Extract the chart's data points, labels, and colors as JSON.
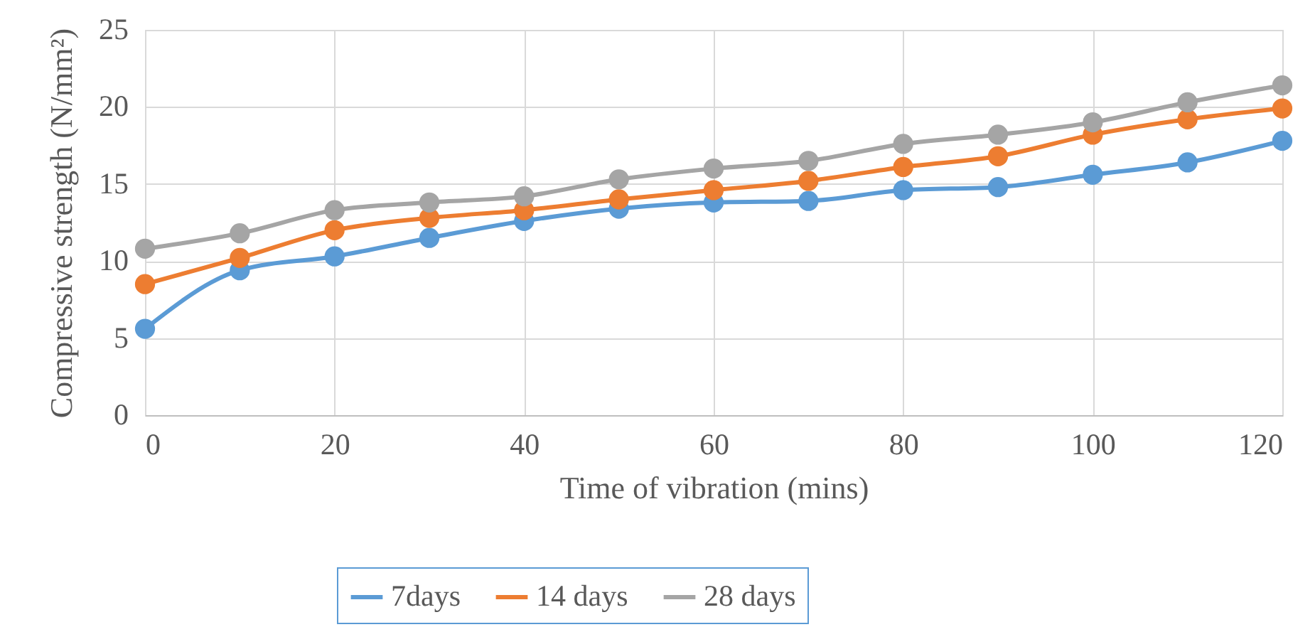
{
  "chart_data": {
    "type": "line",
    "xlabel": "Time of vibration (mins)",
    "ylabel": "Compressive strength (N/mm²)",
    "x": [
      0,
      10,
      20,
      30,
      40,
      50,
      60,
      70,
      80,
      90,
      100,
      110,
      120
    ],
    "series": [
      {
        "name": "7days",
        "color": "#5b9bd5",
        "values": [
          5.6,
          9.4,
          10.3,
          11.5,
          12.6,
          13.4,
          13.8,
          13.9,
          14.6,
          14.8,
          15.6,
          16.4,
          17.8
        ]
      },
      {
        "name": "14 days",
        "color": "#ed7d31",
        "values": [
          8.5,
          10.2,
          12.0,
          12.8,
          13.3,
          14.0,
          14.6,
          15.2,
          16.1,
          16.8,
          18.2,
          19.2,
          19.9
        ]
      },
      {
        "name": "28 days",
        "color": "#a5a5a5",
        "values": [
          10.8,
          11.8,
          13.3,
          13.8,
          14.2,
          15.3,
          16.0,
          16.5,
          17.6,
          18.2,
          19.0,
          20.3,
          21.4
        ]
      }
    ],
    "xlim": [
      0,
      120
    ],
    "xticks": [
      0,
      20,
      40,
      60,
      80,
      100,
      120
    ],
    "ylim": [
      0,
      25
    ],
    "yticks": [
      0,
      5,
      10,
      15,
      20,
      25
    ],
    "grid": true,
    "legend": "bottom",
    "marker": "circle",
    "line_style": "solid"
  }
}
